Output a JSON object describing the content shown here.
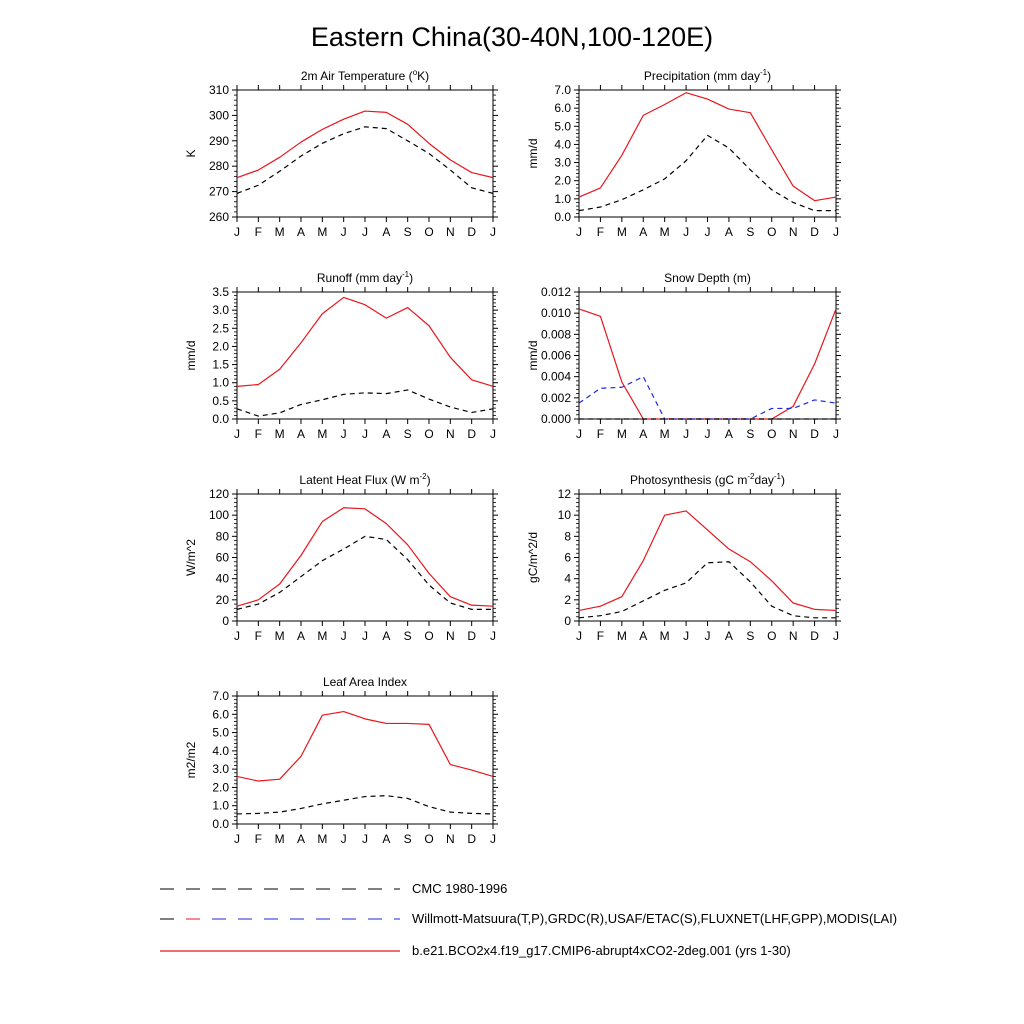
{
  "page": {
    "title": "Eastern China(30-40N,100-120E)"
  },
  "months": [
    "J",
    "F",
    "M",
    "A",
    "M",
    "J",
    "J",
    "A",
    "S",
    "O",
    "N",
    "D",
    "J"
  ],
  "colors": {
    "model": "#e8161d",
    "obs": "#000000",
    "obs_snow": "#1f2ad6"
  },
  "legend": {
    "items": [
      {
        "label": "CMC 1980-1996",
        "style": "dashed-black"
      },
      {
        "label": "Willmott-Matsuura(T,P),GRDC(R),USAF/ETAC(S),FLUXNET(LHF,GPP),MODIS(LAI)",
        "style": "dashed-black-red-blue"
      },
      {
        "label": "b.e21.BCO2x4.f19_g17.CMIP6-abrupt4xCO2-2deg.001 (yrs 1-30)",
        "style": "solid-red"
      }
    ]
  },
  "chart_data": [
    {
      "id": "temp",
      "type": "line",
      "title": "2m Air Temperature (°K)",
      "title_parts": [
        "2m Air Temperature (",
        "o",
        "K)"
      ],
      "ylabel": "K",
      "ylim": [
        260,
        310
      ],
      "yticks": [
        260,
        270,
        280,
        290,
        300,
        310
      ],
      "ytick_labels": [
        "260",
        "270",
        "280",
        "290",
        "300",
        "310"
      ],
      "series": [
        {
          "role": "model",
          "values": [
            275.5,
            278.5,
            283.5,
            289.5,
            294.5,
            298.5,
            301.7,
            301.2,
            296.5,
            289,
            282.5,
            277.5,
            275.5
          ]
        },
        {
          "role": "obs",
          "values": [
            269.3,
            272.5,
            278,
            284,
            289,
            292.8,
            295.5,
            294.8,
            290,
            285,
            278.5,
            271.5,
            269.3
          ]
        }
      ]
    },
    {
      "id": "precip",
      "type": "line",
      "title": "Precipitation (mm day-1)",
      "title_parts": [
        "Precipitation (mm day",
        "-1",
        ")"
      ],
      "ylabel": "mm/d",
      "ylim": [
        0,
        7
      ],
      "yticks": [
        0,
        1,
        2,
        3,
        4,
        5,
        6,
        7
      ],
      "ytick_labels": [
        "0.0",
        "1.0",
        "2.0",
        "3.0",
        "4.0",
        "5.0",
        "6.0",
        "7.0"
      ],
      "series": [
        {
          "role": "model",
          "values": [
            1.1,
            1.6,
            3.4,
            5.6,
            6.2,
            6.85,
            6.5,
            5.95,
            5.75,
            3.7,
            1.7,
            0.9,
            1.1
          ]
        },
        {
          "role": "obs",
          "values": [
            0.35,
            0.55,
            0.95,
            1.5,
            2.1,
            3.1,
            4.5,
            3.8,
            2.6,
            1.5,
            0.8,
            0.35,
            0.35
          ]
        }
      ]
    },
    {
      "id": "runoff",
      "type": "line",
      "title": "Runoff (mm day-1)",
      "title_parts": [
        "Runoff (mm day",
        "-1",
        ")"
      ],
      "ylabel": "mm/d",
      "ylim": [
        0,
        3.5
      ],
      "yticks": [
        0,
        0.5,
        1,
        1.5,
        2,
        2.5,
        3,
        3.5
      ],
      "ytick_labels": [
        "0.0",
        "0.5",
        "1.0",
        "1.5",
        "2.0",
        "2.5",
        "3.0",
        "3.5"
      ],
      "series": [
        {
          "role": "model",
          "values": [
            0.9,
            0.95,
            1.37,
            2.1,
            2.9,
            3.35,
            3.15,
            2.78,
            3.07,
            2.57,
            1.7,
            1.08,
            0.9
          ]
        },
        {
          "role": "obs",
          "values": [
            0.28,
            0.08,
            0.17,
            0.4,
            0.53,
            0.68,
            0.72,
            0.7,
            0.8,
            0.55,
            0.33,
            0.18,
            0.28
          ]
        }
      ]
    },
    {
      "id": "snow",
      "type": "line",
      "title": "Snow Depth (m)",
      "title_parts": [
        "Snow Depth (m)"
      ],
      "ylabel": "mm/d",
      "ylim": [
        0,
        0.012
      ],
      "yticks": [
        0,
        0.002,
        0.004,
        0.006,
        0.008,
        0.01,
        0.012
      ],
      "ytick_labels": [
        "0.000",
        "0.002",
        "0.004",
        "0.006",
        "0.008",
        "0.010",
        "0.012"
      ],
      "series": [
        {
          "role": "model",
          "values": [
            0.0104,
            0.0097,
            0.0035,
            0,
            0,
            0,
            0,
            0,
            0,
            0,
            0.0012,
            0.0052,
            0.0104
          ]
        },
        {
          "role": "obs_snow",
          "values": [
            0.0015,
            0.0029,
            0.003,
            0.004,
            0,
            0,
            0,
            0,
            0,
            0.001,
            0.001,
            0.0018,
            0.0015
          ]
        },
        {
          "role": "obs",
          "values": [
            0,
            0,
            0,
            0,
            0,
            0,
            0,
            0,
            0,
            0,
            0,
            0,
            0
          ]
        }
      ]
    },
    {
      "id": "lhf",
      "type": "line",
      "title": "Latent Heat Flux (W m-2)",
      "title_parts": [
        "Latent Heat Flux (W m",
        "-2",
        ")"
      ],
      "ylabel": "W/m^2",
      "ylim": [
        0,
        120
      ],
      "yticks": [
        0,
        20,
        40,
        60,
        80,
        100,
        120
      ],
      "ytick_labels": [
        "0",
        "20",
        "40",
        "60",
        "80",
        "100",
        "120"
      ],
      "series": [
        {
          "role": "model",
          "values": [
            14,
            20,
            35,
            62,
            94,
            107,
            106,
            92,
            72,
            45,
            23,
            15,
            14
          ]
        },
        {
          "role": "obs",
          "values": [
            11,
            16,
            27,
            42,
            57,
            68,
            80,
            77,
            58,
            34,
            17,
            11,
            11
          ]
        }
      ]
    },
    {
      "id": "gpp",
      "type": "line",
      "title": "Photosynthesis (gC m-2day-1)",
      "title_parts": [
        "Photosynthesis (gC m",
        "-2",
        "day",
        "-1",
        ")"
      ],
      "ylabel": "gC/m^2/d",
      "ylim": [
        0,
        12
      ],
      "yticks": [
        0,
        2,
        4,
        6,
        8,
        10,
        12
      ],
      "ytick_labels": [
        "0",
        "2",
        "4",
        "6",
        "8",
        "10",
        "12"
      ],
      "series": [
        {
          "role": "model",
          "values": [
            1.0,
            1.4,
            2.3,
            5.7,
            10.0,
            10.4,
            8.6,
            6.8,
            5.6,
            3.8,
            1.7,
            1.1,
            1.0
          ]
        },
        {
          "role": "obs",
          "values": [
            0.3,
            0.5,
            0.9,
            1.9,
            2.9,
            3.6,
            5.5,
            5.6,
            3.7,
            1.4,
            0.5,
            0.3,
            0.3
          ]
        }
      ]
    },
    {
      "id": "lai",
      "type": "line",
      "title": "Leaf Area Index",
      "title_parts": [
        "Leaf Area Index"
      ],
      "ylabel": "m2/m2",
      "ylim": [
        0,
        7
      ],
      "yticks": [
        0,
        1,
        2,
        3,
        4,
        5,
        6,
        7
      ],
      "ytick_labels": [
        "0.0",
        "1.0",
        "2.0",
        "3.0",
        "4.0",
        "5.0",
        "6.0",
        "7.0"
      ],
      "series": [
        {
          "role": "model",
          "values": [
            2.6,
            2.35,
            2.45,
            3.7,
            5.95,
            6.15,
            5.75,
            5.5,
            5.5,
            5.45,
            3.25,
            2.95,
            2.6
          ]
        },
        {
          "role": "obs",
          "values": [
            0.55,
            0.58,
            0.65,
            0.85,
            1.1,
            1.3,
            1.5,
            1.55,
            1.4,
            0.95,
            0.65,
            0.58,
            0.55
          ]
        }
      ]
    }
  ]
}
